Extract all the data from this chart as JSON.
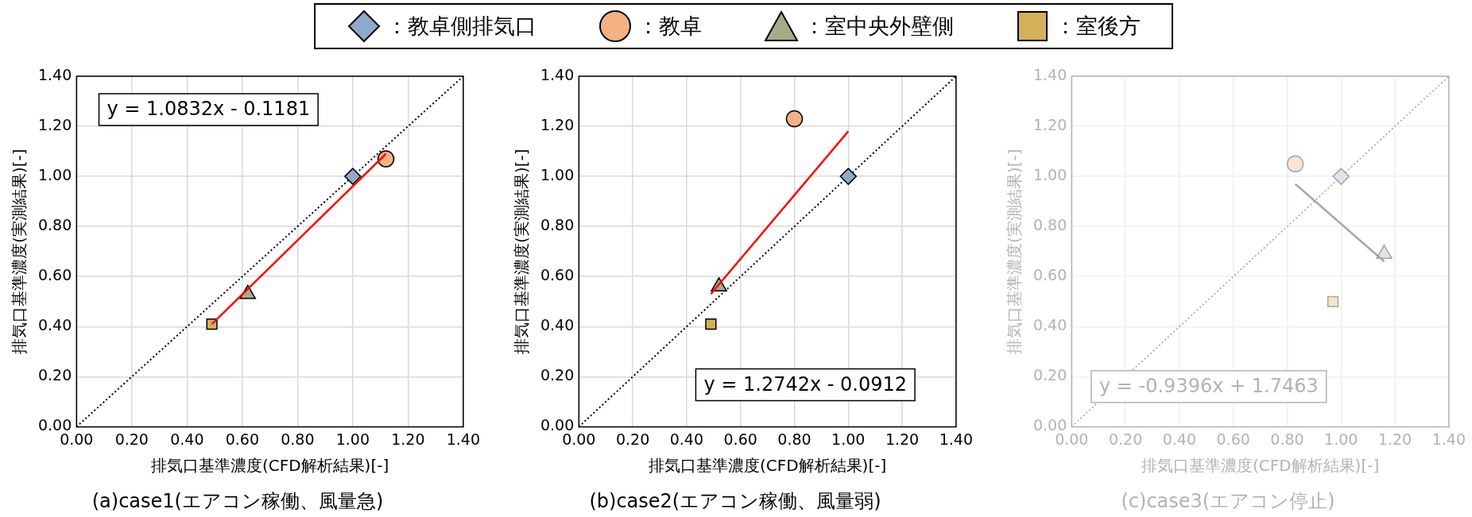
{
  "chart_data": [
    {
      "type": "scatter",
      "title": "(a)case1(エアコン稼働、風量急)",
      "xlabel": "排気口基準濃度(CFD解析結果)[-]",
      "ylabel": "排気口基準濃度(実測結果)[-]",
      "annotations": [
        "y = 1.0832x - 0.1181"
      ],
      "xlim": [
        0,
        1.4
      ],
      "ylim": [
        0,
        1.4
      ],
      "xticks": [
        {
          "value": 0,
          "label": "0.00"
        },
        {
          "value": 0.2,
          "label": "0.20"
        },
        {
          "value": 0.4,
          "label": "0.40"
        },
        {
          "value": 0.6,
          "label": "0.60"
        },
        {
          "value": 0.8,
          "label": "0.80"
        },
        {
          "value": 1,
          "label": "1.00"
        },
        {
          "value": 1.2,
          "label": "1.20"
        },
        {
          "value": 1.4,
          "label": "1.40"
        }
      ],
      "yticks": [
        {
          "value": 0,
          "label": "0.00"
        },
        {
          "value": 0.2,
          "label": "0.20"
        },
        {
          "value": 0.4,
          "label": "0.40"
        },
        {
          "value": 0.6,
          "label": "0.60"
        },
        {
          "value": 0.8,
          "label": "0.80"
        },
        {
          "value": 1,
          "label": "1.00"
        },
        {
          "value": 1.2,
          "label": "1.20"
        },
        {
          "value": 1.4,
          "label": "1.40"
        }
      ],
      "grid": true,
      "legend": "top",
      "series": [
        {
          "type": "line",
          "x": [
            0,
            1.4
          ],
          "values": [
            0,
            1.4
          ],
          "color": "#000000",
          "line_style": "dotted",
          "marker": "none"
        },
        {
          "type": "line",
          "x": [
            0.49,
            1.12
          ],
          "values": [
            0.41,
            1.09
          ],
          "color": "#ff0000",
          "line_style": "solid",
          "marker": "none"
        },
        {
          "name": "：教卓側排気口",
          "x": [
            1.0
          ],
          "values": [
            1.0
          ],
          "color": "#8eaacb",
          "marker": "diamond"
        },
        {
          "name": "：教卓",
          "x": [
            1.12
          ],
          "values": [
            1.07
          ],
          "color": "#f4b183",
          "marker": "circle"
        },
        {
          "name": "：室中央外壁側",
          "x": [
            0.62
          ],
          "values": [
            0.53
          ],
          "color": "#a5ad88",
          "marker": "triangle"
        },
        {
          "name": "：室後方",
          "x": [
            0.49
          ],
          "values": [
            0.41
          ],
          "color": "#d4b05a",
          "marker": "square"
        }
      ]
    },
    {
      "type": "scatter",
      "title": "(b)case2(エアコン稼働、風量弱)",
      "xlabel": "排気口基準濃度(CFD解析結果)[-]",
      "ylabel": "排気口基準濃度(実測結果)[-]",
      "annotations": [
        "y = 1.2742x - 0.0912"
      ],
      "xlim": [
        0,
        1.4
      ],
      "ylim": [
        0,
        1.4
      ],
      "xticks": [
        {
          "value": 0,
          "label": "0.00"
        },
        {
          "value": 0.2,
          "label": "0.20"
        },
        {
          "value": 0.4,
          "label": "0.40"
        },
        {
          "value": 0.6,
          "label": "0.60"
        },
        {
          "value": 0.8,
          "label": "0.80"
        },
        {
          "value": 1,
          "label": "1.00"
        },
        {
          "value": 1.2,
          "label": "1.20"
        },
        {
          "value": 1.4,
          "label": "1.40"
        }
      ],
      "yticks": [
        {
          "value": 0,
          "label": "0.00"
        },
        {
          "value": 0.2,
          "label": "0.20"
        },
        {
          "value": 0.4,
          "label": "0.40"
        },
        {
          "value": 0.6,
          "label": "0.60"
        },
        {
          "value": 0.8,
          "label": "0.80"
        },
        {
          "value": 1,
          "label": "1.00"
        },
        {
          "value": 1.2,
          "label": "1.20"
        },
        {
          "value": 1.4,
          "label": "1.40"
        }
      ],
      "grid": true,
      "series": [
        {
          "type": "line",
          "x": [
            0,
            1.4
          ],
          "values": [
            0,
            1.4
          ],
          "color": "#000000",
          "line_style": "dotted",
          "marker": "none"
        },
        {
          "type": "line",
          "x": [
            0.49,
            1.0
          ],
          "values": [
            0.53,
            1.18
          ],
          "color": "#ff0000",
          "line_style": "solid",
          "marker": "none"
        },
        {
          "x": [
            1.0
          ],
          "values": [
            1.0
          ],
          "color": "#8eaacb",
          "marker": "diamond"
        },
        {
          "x": [
            0.8
          ],
          "values": [
            1.23
          ],
          "color": "#f4b183",
          "marker": "circle"
        },
        {
          "x": [
            0.52
          ],
          "values": [
            0.56
          ],
          "color": "#a5ad88",
          "marker": "triangle"
        },
        {
          "x": [
            0.49
          ],
          "values": [
            0.41
          ],
          "color": "#d4b05a",
          "marker": "square"
        }
      ]
    },
    {
      "type": "scatter",
      "title": "(c)case3(エアコン停止)",
      "xlabel": "排気口基準濃度(CFD解析結果)[-]",
      "ylabel": "排気口基準濃度(実測結果)[-]",
      "annotations": [
        "y = -0.9396x + 1.7463"
      ],
      "xlim": [
        0,
        1.4
      ],
      "ylim": [
        0,
        1.4
      ],
      "xticks": [
        {
          "value": 0,
          "label": "0.00"
        },
        {
          "value": 0.2,
          "label": "0.20"
        },
        {
          "value": 0.4,
          "label": "0.40"
        },
        {
          "value": 0.6,
          "label": "0.60"
        },
        {
          "value": 0.8,
          "label": "0.80"
        },
        {
          "value": 1,
          "label": "1.00"
        },
        {
          "value": 1.2,
          "label": "1.20"
        },
        {
          "value": 1.4,
          "label": "1.40"
        }
      ],
      "yticks": [
        {
          "value": 0,
          "label": "0.00"
        },
        {
          "value": 0.2,
          "label": "0.20"
        },
        {
          "value": 0.4,
          "label": "0.40"
        },
        {
          "value": 0.6,
          "label": "0.60"
        },
        {
          "value": 0.8,
          "label": "0.80"
        },
        {
          "value": 1,
          "label": "1.00"
        },
        {
          "value": 1.2,
          "label": "1.20"
        },
        {
          "value": 1.4,
          "label": "1.40"
        }
      ],
      "grid": true,
      "series": [
        {
          "type": "line",
          "x": [
            0,
            1.4
          ],
          "values": [
            0,
            1.4
          ],
          "color": "#b3b3b3",
          "line_style": "dotted",
          "marker": "none"
        },
        {
          "type": "line",
          "x": [
            0.83,
            1.16
          ],
          "values": [
            0.97,
            0.66
          ],
          "color": "#a6a6a6",
          "line_style": "solid",
          "marker": "none"
        },
        {
          "x": [
            1.0
          ],
          "values": [
            1.0
          ],
          "color": "#dde6f0",
          "marker": "diamond"
        },
        {
          "x": [
            0.83
          ],
          "values": [
            1.05
          ],
          "color": "#fae3d8",
          "marker": "circle"
        },
        {
          "x": [
            1.16
          ],
          "values": [
            0.69
          ],
          "color": "#e2e5da",
          "marker": "triangle"
        },
        {
          "x": [
            0.97
          ],
          "values": [
            0.5
          ],
          "color": "#f2e6c8",
          "marker": "square"
        }
      ]
    }
  ]
}
